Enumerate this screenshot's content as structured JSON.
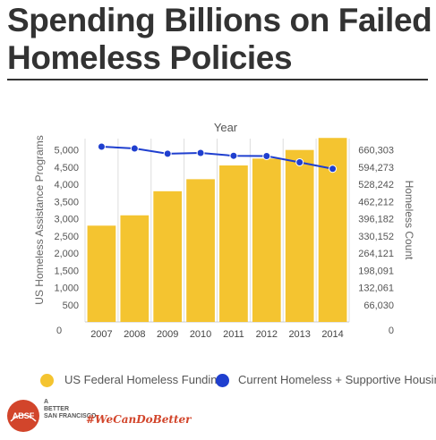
{
  "title": "Spending Billions on Failed Homeless Policies",
  "chart_data": {
    "type": "bar",
    "top_axis_label": "Year",
    "categories": [
      "2007",
      "2008",
      "2009",
      "2010",
      "2011",
      "2012",
      "2013",
      "2014"
    ],
    "left_ylabel": "US Homeless Assistance Programs",
    "right_ylabel": "Homeless Count",
    "left_ticks": [
      "0",
      "500",
      "1,000",
      "1,500",
      "2,000",
      "2,500",
      "3,000",
      "3,500",
      "4,000",
      "4,500",
      "5,000"
    ],
    "right_ticks": [
      "0",
      "66,030",
      "132,061",
      "198,091",
      "264,121",
      "330,152",
      "396,182",
      "462,212",
      "528,242",
      "594,273",
      "660,303"
    ],
    "ylim_left": [
      0,
      5330
    ],
    "ylim_right": [
      0,
      703900
    ],
    "series": [
      {
        "name": "US Federal Homeless Funding",
        "kind": "bar",
        "axis": "left",
        "color": "#f4c430",
        "values": [
          2800,
          3100,
          3800,
          4150,
          4550,
          4750,
          5000,
          5350
        ]
      },
      {
        "name": "Current Homeless + Supportive Housing",
        "kind": "line",
        "axis": "right",
        "color": "#1f3fcf",
        "values": [
          673000,
          666000,
          646000,
          649000,
          638000,
          637000,
          613000,
          588000
        ]
      }
    ],
    "grid": true,
    "legend_position": "bottom"
  },
  "legend": {
    "funding_label": "US Federal Homeless Funding",
    "homeless_label": "Current Homeless + Supportive Housing",
    "funding_color": "#f4c430",
    "homeless_color": "#1f3fcf"
  },
  "footer": {
    "logo_initials": "ABSF",
    "logo_text_1": "A",
    "logo_text_2": "BETTER",
    "logo_text_3": "SAN FRANCISCO",
    "hashtag": "#WeCanDoBetter"
  }
}
